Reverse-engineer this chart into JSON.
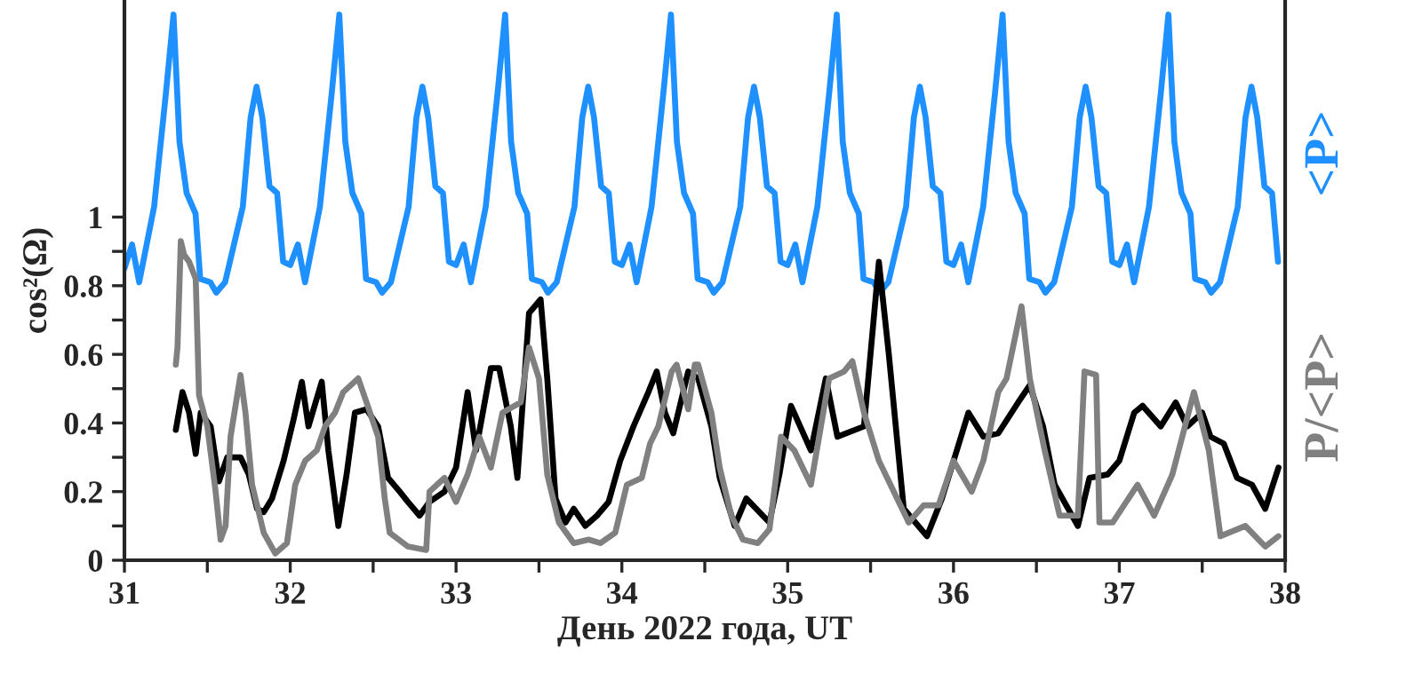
{
  "chart_data": {
    "type": "line",
    "xlabel": "День 2022 года, UT",
    "ylabel": "cos²(Ω)",
    "xlim": [
      31,
      38
    ],
    "ylim": [
      0,
      1.63
    ],
    "xticks": [
      31,
      {
        "value": 31.5,
        "label": null
      },
      32,
      {
        "value": 32.5,
        "label": null
      },
      33,
      {
        "value": 33.5,
        "label": null
      },
      34,
      {
        "value": 34.5,
        "label": null
      },
      35,
      {
        "value": 35.5,
        "label": null
      },
      36,
      {
        "value": 36.5,
        "label": null
      },
      37,
      {
        "value": 37.5,
        "label": null
      },
      38
    ],
    "yticks": [
      0,
      {
        "value": 0.1,
        "label": null
      },
      0.2,
      {
        "value": 0.3,
        "label": null
      },
      0.4,
      {
        "value": 0.5,
        "label": null
      },
      0.6,
      {
        "value": 0.7,
        "label": null
      },
      0.8,
      {
        "value": 0.9,
        "label": null
      },
      1
    ],
    "grid": false,
    "legend": false,
    "marker": "none",
    "line_style": "solid",
    "series": [
      {
        "name": "<P>",
        "color": "#1e90ff",
        "x": [
          31.0,
          31.046,
          31.089,
          31.179,
          31.25,
          31.296,
          31.332,
          31.375,
          31.429,
          31.457,
          31.518,
          31.554,
          31.607,
          31.714,
          31.761,
          31.797,
          31.832,
          31.875,
          31.921,
          31.957,
          32.0,
          32.046,
          32.089,
          32.179,
          32.25,
          32.296,
          32.332,
          32.375,
          32.429,
          32.457,
          32.518,
          32.554,
          32.607,
          32.714,
          32.761,
          32.797,
          32.832,
          32.875,
          32.921,
          32.957,
          33.0,
          33.046,
          33.089,
          33.179,
          33.25,
          33.296,
          33.332,
          33.375,
          33.429,
          33.457,
          33.518,
          33.554,
          33.607,
          33.714,
          33.761,
          33.797,
          33.832,
          33.875,
          33.921,
          33.957,
          34.0,
          34.046,
          34.089,
          34.179,
          34.25,
          34.296,
          34.332,
          34.375,
          34.429,
          34.457,
          34.518,
          34.554,
          34.607,
          34.714,
          34.761,
          34.797,
          34.832,
          34.875,
          34.921,
          34.957,
          35.0,
          35.046,
          35.089,
          35.179,
          35.25,
          35.296,
          35.332,
          35.375,
          35.429,
          35.457,
          35.518,
          35.554,
          35.607,
          35.714,
          35.761,
          35.797,
          35.832,
          35.875,
          35.921,
          35.957,
          36.0,
          36.046,
          36.089,
          36.179,
          36.25,
          36.296,
          36.332,
          36.375,
          36.429,
          36.457,
          36.518,
          36.554,
          36.607,
          36.714,
          36.761,
          36.797,
          36.832,
          36.875,
          36.921,
          36.957,
          37.0,
          37.046,
          37.089,
          37.179,
          37.25,
          37.296,
          37.332,
          37.375,
          37.429,
          37.457,
          37.518,
          37.554,
          37.607,
          37.714,
          37.761,
          37.797,
          37.832,
          37.875,
          37.921,
          37.957
        ],
        "values": [
          0.85,
          0.92,
          0.81,
          1.03,
          1.36,
          1.59,
          1.22,
          1.07,
          1.01,
          0.82,
          0.81,
          0.78,
          0.81,
          1.03,
          1.29,
          1.38,
          1.29,
          1.09,
          1.07,
          0.87,
          0.86,
          0.92,
          0.81,
          1.03,
          1.36,
          1.59,
          1.22,
          1.07,
          1.01,
          0.82,
          0.81,
          0.78,
          0.81,
          1.03,
          1.29,
          1.38,
          1.29,
          1.09,
          1.07,
          0.87,
          0.86,
          0.92,
          0.81,
          1.03,
          1.36,
          1.59,
          1.22,
          1.07,
          1.01,
          0.82,
          0.81,
          0.78,
          0.81,
          1.03,
          1.29,
          1.38,
          1.29,
          1.09,
          1.07,
          0.87,
          0.86,
          0.92,
          0.81,
          1.03,
          1.36,
          1.59,
          1.22,
          1.07,
          1.01,
          0.82,
          0.81,
          0.78,
          0.81,
          1.03,
          1.29,
          1.38,
          1.29,
          1.09,
          1.07,
          0.87,
          0.86,
          0.92,
          0.81,
          1.03,
          1.36,
          1.59,
          1.22,
          1.07,
          1.01,
          0.82,
          0.81,
          0.78,
          0.81,
          1.03,
          1.29,
          1.38,
          1.29,
          1.09,
          1.07,
          0.87,
          0.86,
          0.92,
          0.81,
          1.03,
          1.36,
          1.59,
          1.22,
          1.07,
          1.01,
          0.82,
          0.81,
          0.78,
          0.81,
          1.03,
          1.29,
          1.38,
          1.29,
          1.09,
          1.07,
          0.87,
          0.86,
          0.92,
          0.81,
          1.03,
          1.36,
          1.59,
          1.22,
          1.07,
          1.01,
          0.82,
          0.81,
          0.78,
          0.81,
          1.03,
          1.29,
          1.38,
          1.29,
          1.09,
          1.07,
          0.87
        ]
      },
      {
        "color": "#000000",
        "x": [
          31.31,
          31.35,
          31.39,
          31.43,
          31.46,
          31.52,
          31.57,
          31.62,
          31.7,
          31.75,
          31.8,
          31.84,
          31.89,
          31.96,
          32.02,
          32.07,
          32.11,
          32.19,
          32.23,
          32.29,
          32.34,
          32.39,
          32.46,
          32.53,
          32.59,
          32.66,
          32.71,
          32.78,
          32.84,
          32.93,
          33.0,
          33.07,
          33.12,
          33.21,
          33.26,
          33.33,
          33.37,
          33.44,
          33.51,
          33.55,
          33.6,
          33.66,
          33.71,
          33.78,
          33.85,
          33.92,
          33.99,
          34.07,
          34.16,
          34.21,
          34.26,
          34.31,
          34.4,
          34.46,
          34.54,
          34.59,
          34.68,
          34.75,
          34.89,
          34.95,
          35.02,
          35.14,
          35.23,
          35.3,
          35.46,
          35.55,
          35.61,
          35.7,
          35.84,
          35.93,
          36.02,
          36.09,
          36.18,
          36.27,
          36.39,
          36.46,
          36.54,
          36.61,
          36.75,
          36.82,
          36.93,
          37.0,
          37.09,
          37.14,
          37.25,
          37.34,
          37.41,
          37.5,
          37.55,
          37.63,
          37.71,
          37.8,
          37.88,
          37.96
        ],
        "values": [
          0.38,
          0.49,
          0.43,
          0.31,
          0.43,
          0.39,
          0.23,
          0.3,
          0.3,
          0.25,
          0.15,
          0.14,
          0.18,
          0.29,
          0.41,
          0.52,
          0.39,
          0.52,
          0.32,
          0.1,
          0.25,
          0.43,
          0.44,
          0.39,
          0.24,
          0.2,
          0.17,
          0.13,
          0.17,
          0.2,
          0.27,
          0.49,
          0.32,
          0.56,
          0.56,
          0.39,
          0.24,
          0.72,
          0.76,
          0.53,
          0.18,
          0.11,
          0.15,
          0.1,
          0.13,
          0.17,
          0.29,
          0.39,
          0.49,
          0.55,
          0.43,
          0.37,
          0.55,
          0.53,
          0.39,
          0.24,
          0.1,
          0.18,
          0.11,
          0.25,
          0.45,
          0.32,
          0.53,
          0.36,
          0.39,
          0.87,
          0.6,
          0.15,
          0.07,
          0.18,
          0.32,
          0.43,
          0.36,
          0.37,
          0.46,
          0.51,
          0.39,
          0.22,
          0.1,
          0.24,
          0.25,
          0.29,
          0.43,
          0.45,
          0.39,
          0.46,
          0.39,
          0.43,
          0.36,
          0.34,
          0.24,
          0.22,
          0.15,
          0.27
        ]
      },
      {
        "name": "P/<P>",
        "color": "#808080",
        "x": [
          31.31,
          31.32,
          31.34,
          31.36,
          31.39,
          31.43,
          31.45,
          31.5,
          31.55,
          31.58,
          31.61,
          31.64,
          31.7,
          31.73,
          31.77,
          31.84,
          31.91,
          31.98,
          32.03,
          32.09,
          32.16,
          32.21,
          32.27,
          32.32,
          32.41,
          32.46,
          32.53,
          32.57,
          32.6,
          32.71,
          32.82,
          32.84,
          32.93,
          33.0,
          33.07,
          33.14,
          33.21,
          33.28,
          33.39,
          33.44,
          33.5,
          33.55,
          33.62,
          33.71,
          33.8,
          33.87,
          33.96,
          34.03,
          34.12,
          34.17,
          34.22,
          34.3,
          34.33,
          34.4,
          34.44,
          34.46,
          34.54,
          34.59,
          34.66,
          34.73,
          34.82,
          34.89,
          34.96,
          35.04,
          35.14,
          35.25,
          35.34,
          35.39,
          35.46,
          35.55,
          35.66,
          35.73,
          35.82,
          35.91,
          36.0,
          36.11,
          36.18,
          36.27,
          36.32,
          36.41,
          36.46,
          36.55,
          36.64,
          36.75,
          36.79,
          36.86,
          36.88,
          36.96,
          37.11,
          37.21,
          37.32,
          37.45,
          37.54,
          37.61,
          37.76,
          37.88,
          37.96
        ],
        "values": [
          0.57,
          0.62,
          0.93,
          0.89,
          0.87,
          0.82,
          0.48,
          0.39,
          0.2,
          0.06,
          0.1,
          0.36,
          0.54,
          0.43,
          0.22,
          0.08,
          0.02,
          0.05,
          0.22,
          0.29,
          0.32,
          0.39,
          0.43,
          0.49,
          0.53,
          0.46,
          0.36,
          0.18,
          0.08,
          0.04,
          0.03,
          0.2,
          0.24,
          0.17,
          0.25,
          0.36,
          0.27,
          0.43,
          0.46,
          0.62,
          0.53,
          0.25,
          0.11,
          0.05,
          0.06,
          0.05,
          0.08,
          0.22,
          0.24,
          0.34,
          0.39,
          0.55,
          0.57,
          0.44,
          0.57,
          0.57,
          0.43,
          0.27,
          0.13,
          0.06,
          0.05,
          0.09,
          0.36,
          0.32,
          0.22,
          0.53,
          0.55,
          0.58,
          0.43,
          0.29,
          0.18,
          0.11,
          0.16,
          0.16,
          0.29,
          0.2,
          0.29,
          0.49,
          0.53,
          0.74,
          0.53,
          0.32,
          0.13,
          0.13,
          0.55,
          0.54,
          0.11,
          0.11,
          0.22,
          0.13,
          0.25,
          0.49,
          0.32,
          0.07,
          0.1,
          0.04,
          0.07
        ]
      }
    ]
  }
}
